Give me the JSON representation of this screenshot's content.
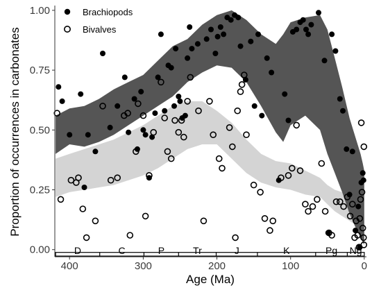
{
  "chart_data": {
    "type": "scatter",
    "xlabel": "Age (Ma)",
    "ylabel": "Proportion of occurrences in carbonates",
    "xlim": [
      420,
      -3
    ],
    "ylim": [
      -0.03,
      1.02
    ],
    "x_ticks": [
      400,
      300,
      200,
      100,
      0
    ],
    "x_tick_labels": [
      "400",
      "300",
      "200",
      "100",
      "0"
    ],
    "y_ticks": [
      0.0,
      0.25,
      0.5,
      0.75,
      1.0
    ],
    "y_tick_labels": [
      "0.00",
      "0.25",
      "0.50",
      "0.75",
      "1.00"
    ],
    "grid": false,
    "legend_position": "top-left",
    "legend": [
      {
        "label": "Brachiopods",
        "marker": "filled-circle"
      },
      {
        "label": "Bivalves",
        "marker": "open-circle"
      }
    ],
    "periods": [
      {
        "label": "D",
        "start": 419,
        "end": 359
      },
      {
        "label": "C",
        "start": 359,
        "end": 299
      },
      {
        "label": "P",
        "start": 299,
        "end": 252
      },
      {
        "label": "Tr",
        "start": 252,
        "end": 201
      },
      {
        "label": "J",
        "start": 201,
        "end": 145
      },
      {
        "label": "K",
        "start": 145,
        "end": 66
      },
      {
        "label": "Pg",
        "start": 66,
        "end": 23
      },
      {
        "label": "Ng",
        "start": 23,
        "end": 0
      }
    ],
    "series": [
      {
        "name": "Brachiopods",
        "marker": "filled",
        "color": "#000000",
        "band_color": "#555555",
        "band": {
          "x": [
            419,
            400,
            380,
            360,
            340,
            320,
            300,
            280,
            260,
            240,
            220,
            200,
            180,
            160,
            140,
            120,
            110,
            100,
            80,
            60,
            50,
            40,
            30,
            20,
            10,
            5,
            2,
            0
          ],
          "lower": [
            0.4,
            0.44,
            0.43,
            0.45,
            0.48,
            0.52,
            0.56,
            0.6,
            0.64,
            0.7,
            0.74,
            0.77,
            0.76,
            0.7,
            0.6,
            0.49,
            0.45,
            0.52,
            0.56,
            0.5,
            0.4,
            0.32,
            0.24,
            0.15,
            0.08,
            0.05,
            0.03,
            0.02
          ],
          "upper": [
            0.56,
            0.59,
            0.6,
            0.63,
            0.67,
            0.7,
            0.73,
            0.79,
            0.85,
            0.88,
            0.94,
            0.98,
            1.0,
            0.96,
            0.9,
            0.86,
            0.9,
            0.95,
            0.97,
            0.98,
            0.92,
            0.8,
            0.68,
            0.55,
            0.45,
            0.4,
            0.36,
            0.33
          ]
        },
        "points": [
          [
            415,
            0.68
          ],
          [
            410,
            0.62
          ],
          [
            400,
            0.48
          ],
          [
            385,
            0.65
          ],
          [
            380,
            0.26
          ],
          [
            375,
            0.48
          ],
          [
            365,
            0.41
          ],
          [
            355,
            0.82
          ],
          [
            345,
            0.51
          ],
          [
            335,
            0.6
          ],
          [
            325,
            0.72
          ],
          [
            320,
            0.49
          ],
          [
            312,
            0.63
          ],
          [
            308,
            0.42
          ],
          [
            303,
            0.66
          ],
          [
            300,
            0.5
          ],
          [
            297,
            0.48
          ],
          [
            292,
            0.3
          ],
          [
            288,
            0.47
          ],
          [
            284,
            0.57
          ],
          [
            280,
            0.72
          ],
          [
            276,
            0.9
          ],
          [
            271,
            0.58
          ],
          [
            266,
            0.77
          ],
          [
            262,
            0.76
          ],
          [
            258,
            0.6
          ],
          [
            256,
            0.84
          ],
          [
            252,
            0.64
          ],
          [
            250,
            0.62
          ],
          [
            247,
            0.55
          ],
          [
            243,
            0.56
          ],
          [
            240,
            0.8
          ],
          [
            237,
            0.93
          ],
          [
            234,
            0.84
          ],
          [
            226,
            0.86
          ],
          [
            214,
            0.88
          ],
          [
            208,
            0.92
          ],
          [
            202,
            0.82
          ],
          [
            199,
            0.89
          ],
          [
            195,
            0.93
          ],
          [
            191,
            0.9
          ],
          [
            186,
            0.97
          ],
          [
            181,
            0.96
          ],
          [
            176,
            0.98
          ],
          [
            171,
            0.97
          ],
          [
            168,
            0.85
          ],
          [
            161,
            0.71
          ],
          [
            154,
            0.87
          ],
          [
            149,
            0.6
          ],
          [
            144,
            0.9
          ],
          [
            139,
            0.56
          ],
          [
            132,
            0.8
          ],
          [
            126,
            0.74
          ],
          [
            116,
            0.29
          ],
          [
            108,
            0.65
          ],
          [
            103,
            0.54
          ],
          [
            97,
            0.91
          ],
          [
            92,
            0.92
          ],
          [
            87,
            0.95
          ],
          [
            83,
            0.96
          ],
          [
            79,
            0.92
          ],
          [
            76,
            0.9
          ],
          [
            72,
            0.94
          ],
          [
            62,
            0.99
          ],
          [
            54,
            0.79
          ],
          [
            49,
            0.07
          ],
          [
            44,
            0.9
          ],
          [
            39,
            0.83
          ],
          [
            33,
            0.63
          ],
          [
            29,
            0.58
          ],
          [
            24,
            0.42
          ],
          [
            20,
            0.23
          ],
          [
            16,
            0.41
          ],
          [
            12,
            0.08
          ],
          [
            8,
            0.18
          ],
          [
            6,
            0.01
          ],
          [
            4,
            0.28
          ],
          [
            2,
            0.32
          ],
          [
            1,
            0.29
          ]
        ]
      },
      {
        "name": "Bivalves",
        "marker": "open",
        "color": "#000000",
        "band_color": "#d4d4d4",
        "band": {
          "x": [
            419,
            400,
            380,
            360,
            340,
            320,
            300,
            280,
            260,
            240,
            220,
            200,
            180,
            160,
            140,
            120,
            100,
            80,
            60,
            50,
            40,
            30,
            20,
            10,
            5,
            2,
            0
          ],
          "lower": [
            0.22,
            0.24,
            0.25,
            0.26,
            0.27,
            0.29,
            0.31,
            0.34,
            0.38,
            0.42,
            0.44,
            0.44,
            0.38,
            0.32,
            0.28,
            0.26,
            0.25,
            0.23,
            0.22,
            0.19,
            0.16,
            0.14,
            0.12,
            0.1,
            0.09,
            0.08,
            0.06
          ],
          "upper": [
            0.38,
            0.4,
            0.42,
            0.44,
            0.46,
            0.49,
            0.52,
            0.56,
            0.6,
            0.62,
            0.62,
            0.58,
            0.53,
            0.46,
            0.4,
            0.37,
            0.36,
            0.33,
            0.3,
            0.27,
            0.25,
            0.24,
            0.22,
            0.19,
            0.18,
            0.19,
            0.2
          ]
        },
        "points": [
          [
            417,
            0.57
          ],
          [
            412,
            0.21
          ],
          [
            398,
            0.29
          ],
          [
            391,
            0.28
          ],
          [
            388,
            0.3
          ],
          [
            382,
            0.17
          ],
          [
            377,
            0.05
          ],
          [
            365,
            0.12
          ],
          [
            355,
            0.6
          ],
          [
            344,
            0.29
          ],
          [
            335,
            0.3
          ],
          [
            326,
            0.56
          ],
          [
            321,
            0.57
          ],
          [
            318,
            0.06
          ],
          [
            310,
            0.41
          ],
          [
            307,
            0.61
          ],
          [
            300,
            0.56
          ],
          [
            297,
            0.14
          ],
          [
            292,
            0.31
          ],
          [
            286,
            0.49
          ],
          [
            276,
            0.7
          ],
          [
            271,
            0.55
          ],
          [
            267,
            0.41
          ],
          [
            262,
            0.38
          ],
          [
            257,
            0.54
          ],
          [
            252,
            0.49
          ],
          [
            248,
            0.54
          ],
          [
            245,
            0.47
          ],
          [
            240,
            0.62
          ],
          [
            236,
            0.72
          ],
          [
            225,
            0.58
          ],
          [
            218,
            0.12
          ],
          [
            210,
            0.62
          ],
          [
            205,
            0.48
          ],
          [
            197,
            0.38
          ],
          [
            193,
            0.34
          ],
          [
            183,
            0.51
          ],
          [
            179,
            0.43
          ],
          [
            175,
            0.05
          ],
          [
            172,
            0.58
          ],
          [
            168,
            0.66
          ],
          [
            166,
            0.69
          ],
          [
            163,
            0.73
          ],
          [
            160,
            0.48
          ],
          [
            150,
            0.27
          ],
          [
            141,
            0.24
          ],
          [
            135,
            0.13
          ],
          [
            128,
            0.08
          ],
          [
            124,
            0.12
          ],
          [
            113,
            0.3
          ],
          [
            103,
            0.31
          ],
          [
            98,
            0.34
          ],
          [
            92,
            0.52
          ],
          [
            87,
            0.33
          ],
          [
            80,
            0.19
          ],
          [
            76,
            0.16
          ],
          [
            70,
            0.18
          ],
          [
            64,
            0.21
          ],
          [
            58,
            0.36
          ],
          [
            53,
            0.16
          ],
          [
            48,
            0.07
          ],
          [
            44,
            0.06
          ],
          [
            38,
            0.2
          ],
          [
            33,
            0.2
          ],
          [
            28,
            0.18
          ],
          [
            23,
            0.22
          ],
          [
            19,
            0.14
          ],
          [
            16,
            0.19
          ],
          [
            13,
            0.05
          ],
          [
            11,
            0.12
          ],
          [
            9,
            0.06
          ],
          [
            7,
            0.01
          ],
          [
            6,
            0.13
          ],
          [
            5,
            0.21
          ],
          [
            4,
            0.53
          ],
          [
            3,
            0.24
          ],
          [
            2,
            0.09
          ],
          [
            1,
            0.05
          ],
          [
            0.5,
            0.43
          ],
          [
            0.5,
            0.02
          ]
        ]
      }
    ]
  }
}
